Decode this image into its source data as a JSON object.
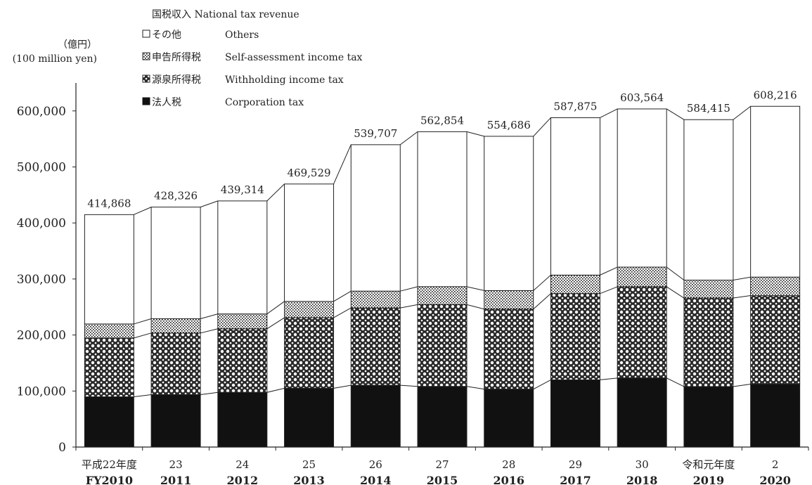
{
  "chart_data": {
    "type": "bar",
    "stacked": true,
    "title": "国税収入 National tax revenue",
    "unit_label_ja": "（億円）",
    "unit_label_en": "(100 million yen)",
    "categories_ja": [
      "平成22年度",
      "23",
      "24",
      "25",
      "26",
      "27",
      "28",
      "29",
      "30",
      "令和元年度",
      "2"
    ],
    "categories_en": [
      "FY2010",
      "2011",
      "2012",
      "2013",
      "2014",
      "2015",
      "2016",
      "2017",
      "2018",
      "2019",
      "2020"
    ],
    "ylim": [
      0,
      700000
    ],
    "yticks": [
      0,
      100000,
      200000,
      300000,
      400000,
      500000,
      600000
    ],
    "ytick_labels": [
      "0",
      "100,000",
      "200,000",
      "300,000",
      "400,000",
      "500,000",
      "600,000"
    ],
    "series": [
      {
        "name": "法人税 Corporation tax",
        "name_ja": "法人税",
        "name_en": "Corporation tax",
        "pattern": "solid",
        "values": [
          89677,
          93514,
          97583,
          104937,
          110316,
          108274,
          103289,
          119953,
          123180,
          107971,
          112346
        ]
      },
      {
        "name": "源泉所得税 Withholding income tax",
        "name_ja": "源泉所得税",
        "name_en": "Withholding income tax",
        "pattern": "crosshatch",
        "values": [
          105000,
          110000,
          113500,
          126000,
          138000,
          146000,
          143000,
          154000,
          163000,
          158000,
          158000
        ]
      },
      {
        "name": "申告所得税 Self-assessment income tax",
        "name_ja": "申告所得税",
        "name_en": "Self-assessment income tax",
        "pattern": "dots",
        "values": [
          25000,
          25500,
          26500,
          29000,
          30000,
          32000,
          33000,
          33000,
          35000,
          32000,
          33000
        ]
      },
      {
        "name": "その他 Others",
        "name_ja": "その他",
        "name_en": "Others",
        "pattern": "blank",
        "values": [
          195191,
          199312,
          201731,
          209592,
          261391,
          276580,
          275397,
          280922,
          282384,
          286444,
          304870
        ]
      }
    ],
    "totals": [
      414868,
      428326,
      439314,
      469529,
      539707,
      562854,
      554686,
      587875,
      603564,
      584415,
      608216
    ],
    "total_labels": [
      "414,868",
      "428,326",
      "439,314",
      "469,529",
      "539,707",
      "562,854",
      "554,686",
      "587,875",
      "603,564",
      "584,415",
      "608,216"
    ],
    "legend_order": [
      "その他 Others",
      "申告所得税 Self-assessment income tax",
      "源泉所得税 Withholding income tax",
      "法人税 Corporation tax"
    ],
    "legend_placement": "top-left",
    "grid": false
  }
}
